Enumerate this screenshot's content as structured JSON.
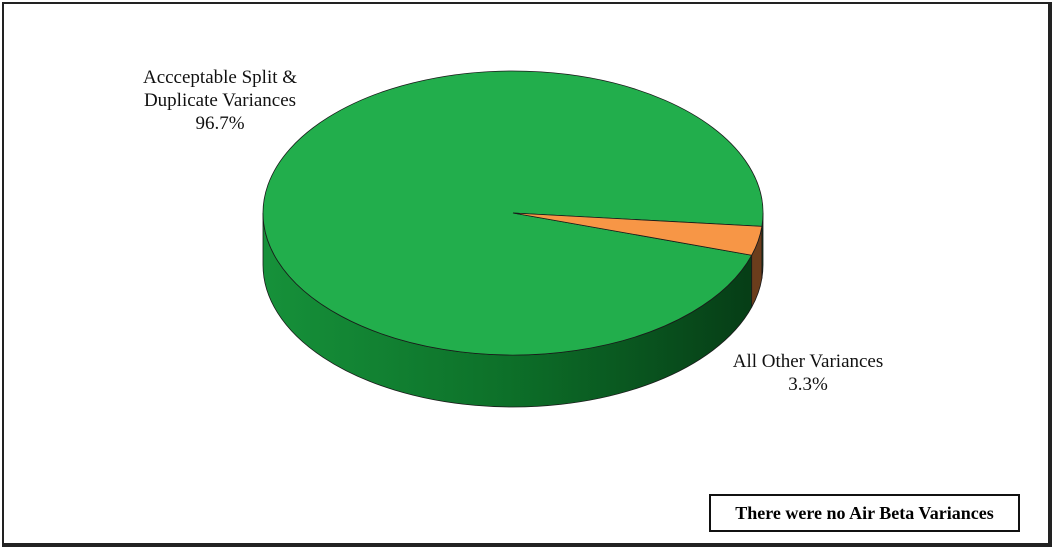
{
  "chart_data": {
    "type": "pie",
    "title": "",
    "slices": [
      {
        "label_lines": [
          "Accceptable Split &",
          "Duplicate Variances"
        ],
        "pct_label": "96.7%",
        "value": 96.7,
        "color": "#22ae4c",
        "side_color": "#0e6e2a"
      },
      {
        "label_lines": [
          "All Other Variances"
        ],
        "pct_label": "3.3%",
        "value": 3.3,
        "color": "#f79646",
        "side_color": "#6b3d1c"
      }
    ]
  },
  "note": {
    "text": "There were no Air Beta Variances"
  }
}
